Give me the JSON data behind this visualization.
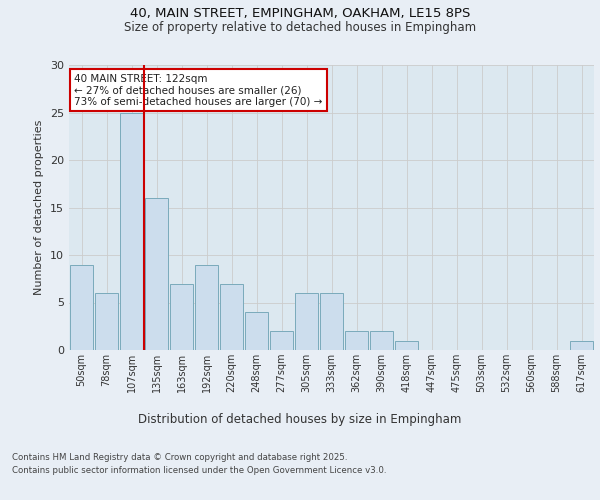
{
  "title_line1": "40, MAIN STREET, EMPINGHAM, OAKHAM, LE15 8PS",
  "title_line2": "Size of property relative to detached houses in Empingham",
  "xlabel": "Distribution of detached houses by size in Empingham",
  "ylabel": "Number of detached properties",
  "bar_labels": [
    "50sqm",
    "78sqm",
    "107sqm",
    "135sqm",
    "163sqm",
    "192sqm",
    "220sqm",
    "248sqm",
    "277sqm",
    "305sqm",
    "333sqm",
    "362sqm",
    "390sqm",
    "418sqm",
    "447sqm",
    "475sqm",
    "503sqm",
    "532sqm",
    "560sqm",
    "588sqm",
    "617sqm"
  ],
  "bar_values": [
    9,
    6,
    25,
    16,
    7,
    9,
    7,
    4,
    2,
    6,
    6,
    2,
    2,
    1,
    0,
    0,
    0,
    0,
    0,
    0,
    1
  ],
  "bar_color": "#ccdded",
  "bar_edge_color": "#7aaabb",
  "vline_color": "#cc0000",
  "annotation_text": "40 MAIN STREET: 122sqm\n← 27% of detached houses are smaller (26)\n73% of semi-detached houses are larger (70) →",
  "annotation_box_color": "#ffffff",
  "annotation_box_edge": "#cc0000",
  "grid_color": "#cccccc",
  "bg_color": "#e8eef5",
  "plot_bg_color": "#dce8f0",
  "ylim": [
    0,
    30
  ],
  "yticks": [
    0,
    5,
    10,
    15,
    20,
    25,
    30
  ],
  "footer_line1": "Contains HM Land Registry data © Crown copyright and database right 2025.",
  "footer_line2": "Contains public sector information licensed under the Open Government Licence v3.0."
}
